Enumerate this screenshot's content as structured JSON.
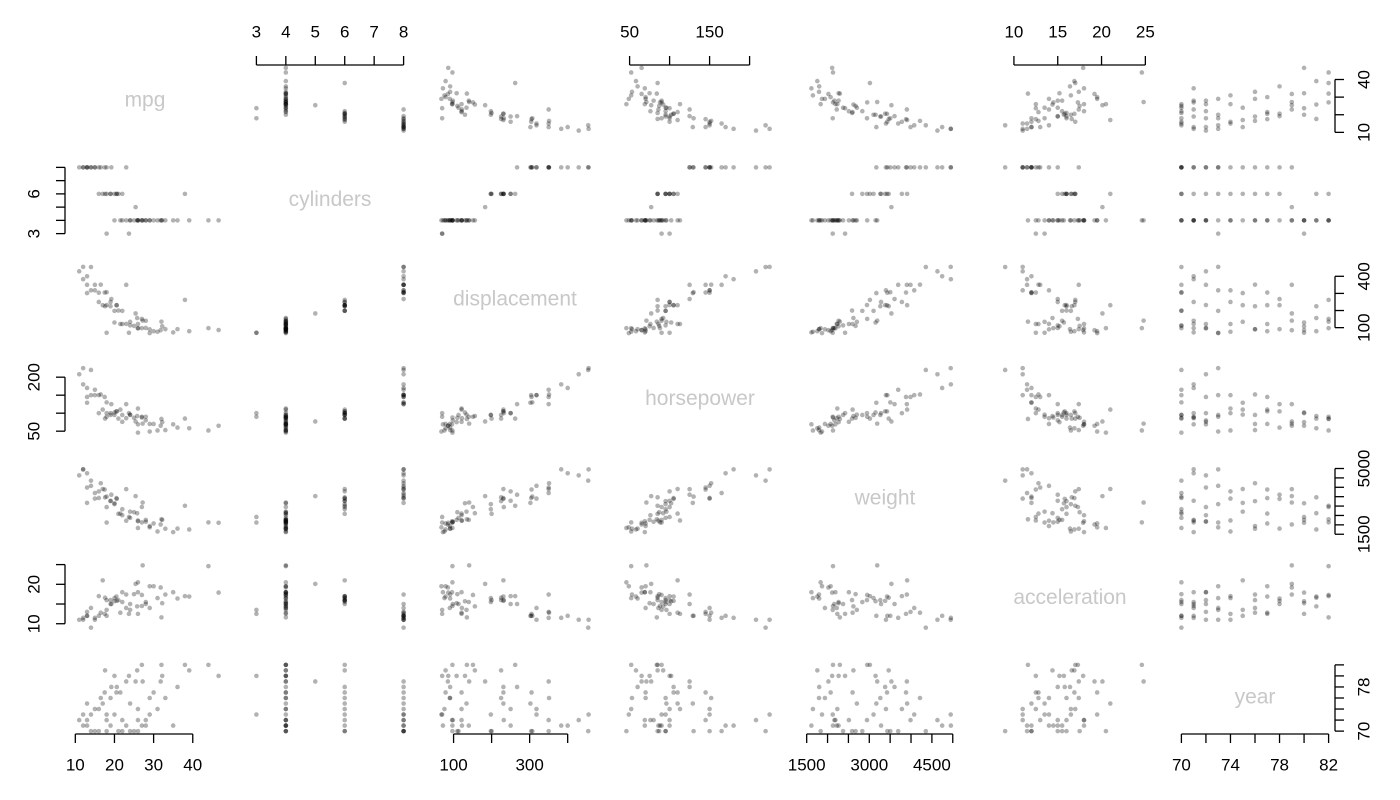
{
  "chart_data": {
    "type": "pairs",
    "color": "#000000",
    "label_color": "#c8c8c8",
    "variables": [
      {
        "name": "mpg",
        "lim": [
          9,
          46.6
        ],
        "col_ticks": [
          10,
          20,
          30,
          40
        ],
        "row_ticks": [
          10,
          {
            "value": 20,
            "label": null
          },
          {
            "value": 30,
            "label": null
          },
          40
        ]
      },
      {
        "name": "cylinders",
        "lim": [
          3,
          8
        ],
        "col_ticks": [
          3,
          4,
          5,
          6,
          7,
          8
        ],
        "row_ticks": [
          3,
          {
            "value": 4,
            "label": null
          },
          {
            "value": 5,
            "label": null
          },
          6,
          {
            "value": 7,
            "label": null
          },
          {
            "value": 8,
            "label": null
          }
        ]
      },
      {
        "name": "displacement",
        "lim": [
          68,
          455
        ],
        "col_ticks": [
          100,
          {
            "value": 200,
            "label": null
          },
          300,
          {
            "value": 400,
            "label": null
          }
        ],
        "row_ticks": [
          100,
          {
            "value": 200,
            "label": null
          },
          {
            "value": 300,
            "label": null
          },
          400
        ]
      },
      {
        "name": "horsepower",
        "lim": [
          46,
          230
        ],
        "col_ticks": [
          50,
          {
            "value": 100,
            "label": null
          },
          150,
          {
            "value": 200,
            "label": null
          }
        ],
        "row_ticks": [
          50,
          {
            "value": 100,
            "label": null
          },
          {
            "value": 150,
            "label": null
          },
          200
        ]
      },
      {
        "name": "weight",
        "lim": [
          1613,
          5140
        ],
        "col_ticks": [
          1500,
          {
            "value": 2000,
            "label": null
          },
          {
            "value": 2500,
            "label": null
          },
          3000,
          {
            "value": 3500,
            "label": null
          },
          {
            "value": 4000,
            "label": null
          },
          4500,
          {
            "value": 5000,
            "label": null
          }
        ],
        "row_ticks": [
          1500,
          {
            "value": 2000,
            "label": null
          },
          {
            "value": 2500,
            "label": null
          },
          {
            "value": 3000,
            "label": null
          },
          {
            "value": 3500,
            "label": null
          },
          {
            "value": 4000,
            "label": null
          },
          {
            "value": 4500,
            "label": null
          },
          5000
        ]
      },
      {
        "name": "acceleration",
        "lim": [
          8,
          24.8
        ],
        "col_ticks": [
          10,
          15,
          20,
          25
        ],
        "row_ticks": [
          10,
          {
            "value": 15,
            "label": null
          },
          20,
          {
            "value": 25,
            "label": null
          }
        ]
      },
      {
        "name": "year",
        "lim": [
          70,
          82
        ],
        "col_ticks": [
          70,
          {
            "value": 72,
            "label": null
          },
          74,
          {
            "value": 76,
            "label": null
          },
          78,
          {
            "value": 80,
            "label": null
          },
          82
        ],
        "row_ticks": [
          70,
          {
            "value": 72,
            "label": null
          },
          {
            "value": 74,
            "label": null
          },
          {
            "value": 76,
            "label": null
          },
          78,
          {
            "value": 80,
            "label": null
          },
          {
            "value": 82,
            "label": null
          }
        ]
      }
    ],
    "rows": [
      [
        18,
        8,
        307,
        130,
        3504,
        12,
        70
      ],
      [
        15,
        8,
        350,
        165,
        3693,
        11.5,
        70
      ],
      [
        16,
        8,
        304,
        150,
        3433,
        12,
        70
      ],
      [
        14,
        8,
        454,
        220,
        4354,
        9,
        70
      ],
      [
        24,
        4,
        113,
        95,
        2372,
        15,
        70
      ],
      [
        22,
        6,
        198,
        95,
        2833,
        15.5,
        70
      ],
      [
        26,
        4,
        97,
        46,
        1835,
        20.5,
        70
      ],
      [
        25,
        4,
        110,
        87,
        2672,
        17.5,
        70
      ],
      [
        21,
        6,
        200,
        85,
        2587,
        16,
        70
      ],
      [
        27,
        4,
        97,
        88,
        2130,
        14.5,
        71
      ],
      [
        28,
        4,
        140,
        90,
        2264,
        15.5,
        71
      ],
      [
        19,
        6,
        250,
        100,
        3282,
        15,
        71
      ],
      [
        13,
        8,
        400,
        170,
        4746,
        12,
        71
      ],
      [
        12,
        8,
        383,
        180,
        4955,
        11.5,
        71
      ],
      [
        23,
        4,
        122,
        86,
        2220,
        14,
        71
      ],
      [
        35,
        4,
        72,
        69,
        1613,
        18,
        71
      ],
      [
        22,
        4,
        121,
        76,
        2511,
        18,
        72
      ],
      [
        13,
        8,
        350,
        145,
        3988,
        13,
        72
      ],
      [
        18,
        6,
        232,
        100,
        2945,
        16,
        72
      ],
      [
        28,
        4,
        98,
        80,
        2164,
        15,
        72
      ],
      [
        11,
        8,
        429,
        208,
        4633,
        11,
        72
      ],
      [
        26,
        4,
        96,
        69,
        2189,
        18,
        72
      ],
      [
        12,
        8,
        455,
        225,
        4951,
        11,
        73
      ],
      [
        20,
        6,
        198,
        95,
        3102,
        16.5,
        73
      ],
      [
        29,
        4,
        68,
        49,
        1867,
        19.5,
        73
      ],
      [
        18,
        3,
        70,
        90,
        2124,
        13.5,
        73
      ],
      [
        14,
        8,
        318,
        150,
        4077,
        14,
        73
      ],
      [
        31,
        4,
        76,
        52,
        1649,
        16.5,
        74
      ],
      [
        16,
        6,
        250,
        100,
        3781,
        17,
        74
      ],
      [
        26,
        4,
        121,
        113,
        2234,
        12.5,
        74
      ],
      [
        15,
        8,
        318,
        150,
        3399,
        11,
        74
      ],
      [
        24,
        4,
        134,
        96,
        2702,
        13.5,
        75
      ],
      [
        17,
        6,
        231,
        110,
        3907,
        21,
        75
      ],
      [
        13,
        8,
        302,
        129,
        3169,
        12,
        75
      ],
      [
        29,
        4,
        90,
        70,
        1937,
        14,
        76
      ],
      [
        19,
        6,
        225,
        95,
        3264,
        16,
        76
      ],
      [
        16.5,
        8,
        351,
        152,
        4215,
        12.8,
        76
      ],
      [
        33,
        4,
        91,
        53,
        1795,
        17.4,
        76
      ],
      [
        30,
        4,
        79,
        70,
        2074,
        19.5,
        77
      ],
      [
        20.5,
        6,
        231,
        105,
        3425,
        16.9,
        77
      ],
      [
        17.5,
        8,
        305,
        145,
        3880,
        12.5,
        77
      ],
      [
        21.5,
        4,
        121,
        110,
        2600,
        12.8,
        77
      ],
      [
        36.1,
        4,
        91,
        60,
        1800,
        16.4,
        78
      ],
      [
        19.2,
        8,
        267,
        125,
        3605,
        15,
        78
      ],
      [
        20.6,
        6,
        231,
        105,
        3380,
        15.8,
        78
      ],
      [
        25.4,
        5,
        183,
        77,
        3530,
        20.1,
        79
      ],
      [
        31.8,
        4,
        85,
        65,
        2020,
        19.2,
        79
      ],
      [
        23,
        8,
        350,
        125,
        3900,
        17.4,
        79
      ],
      [
        27.2,
        4,
        141,
        71,
        3190,
        24.8,
        79
      ],
      [
        46.6,
        4,
        86,
        65,
        2110,
        17.9,
        80
      ],
      [
        32.2,
        4,
        108,
        75,
        2265,
        15.2,
        80
      ],
      [
        23.7,
        3,
        70,
        100,
        2420,
        12.5,
        80
      ],
      [
        39.1,
        4,
        79,
        58,
        1755,
        16.9,
        81
      ],
      [
        25.8,
        4,
        156,
        92,
        2620,
        14.4,
        81
      ],
      [
        17.6,
        6,
        225,
        85,
        3465,
        16.6,
        81
      ],
      [
        44,
        4,
        97,
        52,
        2130,
        24.6,
        82
      ],
      [
        38,
        6,
        262,
        85,
        3015,
        17,
        82
      ],
      [
        27,
        4,
        151,
        90,
        2950,
        17.3,
        82
      ],
      [
        32,
        4,
        135,
        84,
        2295,
        11.6,
        82
      ],
      [
        20,
        4,
        130,
        102,
        3150,
        15.7,
        80
      ]
    ]
  }
}
